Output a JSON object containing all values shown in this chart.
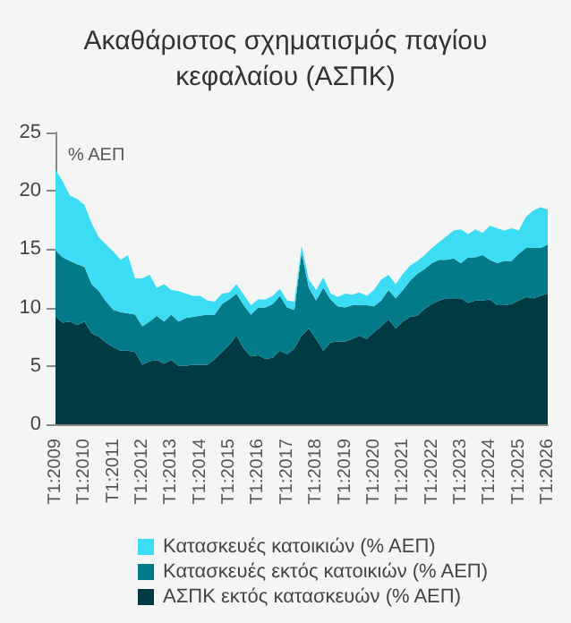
{
  "chart_data": {
    "type": "area",
    "stacked": true,
    "title": "Ακαθάριστος σχηματισμός παγίου\nκεφαλαίου (ΑΣΠΚ)",
    "annotations": [
      "% ΑΕΠ"
    ],
    "categories": [
      "T1:2009",
      null,
      null,
      null,
      "T1:2010",
      null,
      null,
      null,
      "T1:2011",
      null,
      null,
      null,
      "T1:2012",
      null,
      null,
      null,
      "T1:2013",
      null,
      null,
      null,
      "T1:2014",
      null,
      null,
      null,
      "T1:2015",
      null,
      null,
      null,
      "T1:2016",
      null,
      null,
      null,
      "T1:2017",
      null,
      null,
      null,
      "T1:2018",
      null,
      null,
      null,
      "T1:2019",
      null,
      null,
      null,
      "T1:2020",
      null,
      null,
      null,
      "T1:2021",
      null,
      null,
      null,
      "T1:2022",
      null,
      null,
      null,
      "T1:2023",
      null,
      null,
      null,
      "T1:2024",
      null,
      null,
      null,
      "T1:2025",
      null,
      null,
      null,
      "T1:2026"
    ],
    "series": [
      {
        "name": "ΑΣΠΚ εκτός κατασκευών (% ΑΕΠ)",
        "color": "#003a43",
        "values": [
          9.2,
          8.7,
          8.8,
          8.5,
          8.8,
          7.8,
          7.5,
          7.0,
          6.6,
          6.3,
          6.3,
          6.2,
          5.1,
          5.4,
          5.5,
          5.2,
          5.5,
          5.0,
          5.0,
          5.1,
          5.1,
          5.1,
          5.6,
          6.2,
          6.8,
          7.6,
          6.5,
          5.8,
          5.9,
          5.6,
          5.7,
          6.3,
          6.0,
          6.5,
          7.6,
          8.2,
          7.3,
          6.3,
          7.0,
          7.1,
          7.1,
          7.3,
          7.6,
          7.3,
          7.9,
          8.4,
          9.0,
          8.2,
          8.8,
          9.2,
          9.3,
          9.9,
          10.3,
          10.6,
          10.8,
          10.8,
          10.8,
          10.4,
          10.6,
          10.6,
          10.7,
          10.2,
          10.2,
          10.3,
          10.6,
          10.9,
          10.8,
          11.0,
          11.2
        ]
      },
      {
        "name": "Κατασκευές εκτός κατοικιών (% ΑΕΠ)",
        "color": "#037a87",
        "values": [
          5.7,
          5.6,
          5.2,
          5.2,
          4.7,
          4.2,
          3.9,
          3.5,
          3.2,
          3.3,
          3.2,
          3.2,
          3.3,
          3.4,
          3.8,
          3.6,
          3.9,
          3.8,
          4.1,
          4.1,
          4.2,
          4.3,
          3.8,
          4.1,
          3.9,
          3.6,
          3.7,
          3.6,
          4.1,
          4.4,
          4.6,
          4.7,
          4.0,
          3.3,
          7.1,
          3.5,
          3.3,
          5.4,
          3.7,
          3.0,
          2.9,
          2.9,
          2.6,
          2.9,
          2.2,
          2.2,
          2.5,
          2.6,
          2.7,
          3.1,
          3.6,
          3.4,
          3.5,
          3.5,
          3.3,
          3.4,
          3.0,
          3.9,
          3.7,
          3.9,
          3.4,
          3.6,
          3.8,
          3.7,
          4.0,
          4.2,
          4.3,
          4.1,
          4.2
        ]
      },
      {
        "name": "Κατασκευές κατοικιών (% ΑΕΠ)",
        "color": "#3ddcf5",
        "values": [
          6.9,
          6.5,
          5.6,
          5.6,
          5.3,
          5.2,
          4.6,
          4.9,
          5.0,
          4.5,
          5.0,
          3.1,
          4.1,
          4.0,
          2.4,
          3.2,
          2.1,
          2.6,
          2.1,
          1.8,
          1.7,
          1.2,
          1.1,
          0.9,
          0.6,
          0.8,
          0.9,
          0.8,
          0.7,
          0.7,
          0.7,
          0.6,
          0.6,
          0.7,
          0.6,
          0.7,
          0.9,
          0.9,
          0.5,
          0.8,
          1.2,
          0.9,
          1.1,
          0.8,
          1.4,
          1.8,
          1.3,
          1.2,
          1.4,
          1.3,
          1.1,
          1.2,
          1.3,
          1.5,
          2.0,
          2.4,
          2.9,
          2.0,
          2.4,
          1.9,
          2.9,
          3.0,
          2.6,
          2.8,
          2.0,
          2.7,
          3.2,
          3.5,
          3.0
        ]
      }
    ],
    "ylim": [
      0,
      25
    ],
    "yticks": [
      0,
      5,
      10,
      15,
      20,
      25
    ],
    "grid": false,
    "legend": "bottom",
    "marker": "none"
  }
}
